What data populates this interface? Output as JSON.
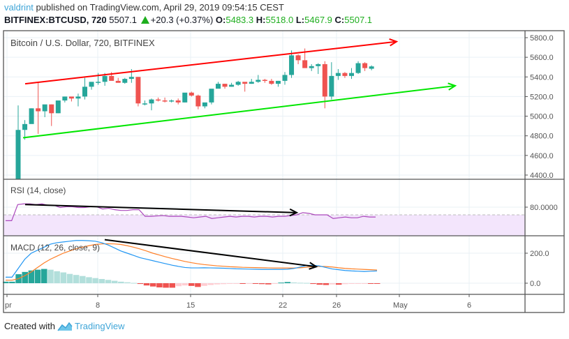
{
  "header": {
    "author": "valdrint",
    "published_text": "published on TradingView.com, April 29, 2019 09:54:15 CEST",
    "symbol": "BITFINEX:BTCUSD, 720",
    "last_price": "5507.1",
    "change": "+20.3 (+0.37%)",
    "o_label": "O:",
    "o_value": "5483.3",
    "h_label": "H:",
    "h_value": "5518.0",
    "l_label": "L:",
    "l_value": "5467.9",
    "c_label": "C:",
    "c_value": "5507.1"
  },
  "footer": {
    "created_with": "Created with",
    "brand": "TradingView"
  },
  "colors": {
    "up": "#26a69a",
    "down": "#ef5350",
    "resistance": "#ff0000",
    "support": "#00e600",
    "rsi": "#ab47bc",
    "rsi_fill": "#f3e5fc",
    "macd": "#2196f3",
    "signal": "#ff7f27",
    "hist_up_strong": "#26a69a",
    "hist_up_weak": "#b2dfdb",
    "hist_down_strong": "#ef5350",
    "hist_down_weak": "#ffcdd2",
    "grid": "#e9f0f6",
    "axis": "#555555"
  },
  "chart_data": [
    {
      "type": "candlestick",
      "title": "Bitcoin / U.S. Dollar, 720, BITFINEX",
      "ylim": [
        4400,
        5800
      ],
      "yticks": [
        "5800.0",
        "5600.0",
        "5400.0",
        "5200.0",
        "5000.0",
        "4800.0",
        "4600.0",
        "4400.0"
      ],
      "xticks": [
        "pr",
        "8",
        "15",
        "22",
        "26",
        "May",
        "6"
      ],
      "ohlc": [
        [
          4300,
          5110,
          4290,
          4860
        ],
        [
          4860,
          4960,
          4760,
          4920
        ],
        [
          4920,
          5080,
          4950,
          5080
        ],
        [
          5080,
          5340,
          4820,
          5050
        ],
        [
          5050,
          5110,
          4990,
          5120
        ],
        [
          5120,
          5120,
          4900,
          5030
        ],
        [
          5030,
          5150,
          5030,
          5160
        ],
        [
          5160,
          5200,
          5140,
          5200
        ],
        [
          5200,
          5190,
          5150,
          5180
        ],
        [
          5180,
          5230,
          5100,
          5200
        ],
        [
          5200,
          5390,
          5170,
          5300
        ],
        [
          5300,
          5320,
          5270,
          5350
        ],
        [
          5350,
          5440,
          5320,
          5350
        ],
        [
          5350,
          5440,
          5310,
          5410
        ],
        [
          5410,
          5450,
          5380,
          5360
        ],
        [
          5360,
          5390,
          5350,
          5340
        ],
        [
          5340,
          5390,
          5330,
          5380
        ],
        [
          5380,
          5480,
          5340,
          5400
        ],
        [
          5400,
          5400,
          5100,
          5130
        ],
        [
          5130,
          5160,
          5110,
          5130
        ],
        [
          5130,
          5180,
          5060,
          5170
        ],
        [
          5170,
          5190,
          5150,
          5160
        ],
        [
          5160,
          5190,
          5140,
          5150
        ],
        [
          5150,
          5170,
          5140,
          5160
        ],
        [
          5160,
          5180,
          5120,
          5140
        ],
        [
          5140,
          5230,
          5140,
          5240
        ],
        [
          5240,
          5250,
          5200,
          5210
        ],
        [
          5210,
          5220,
          5070,
          5100
        ],
        [
          5100,
          5120,
          5080,
          5140
        ],
        [
          5140,
          5260,
          5120,
          5280
        ],
        [
          5280,
          5350,
          5290,
          5330
        ],
        [
          5330,
          5330,
          5280,
          5300
        ],
        [
          5300,
          5340,
          5300,
          5320
        ],
        [
          5320,
          5360,
          5310,
          5350
        ],
        [
          5350,
          5340,
          5250,
          5330
        ],
        [
          5330,
          5380,
          5330,
          5350
        ],
        [
          5350,
          5420,
          5340,
          5370
        ],
        [
          5370,
          5380,
          5340,
          5360
        ],
        [
          5360,
          5380,
          5320,
          5330
        ],
        [
          5330,
          5360,
          5300,
          5360
        ],
        [
          5360,
          5450,
          5320,
          5420
        ],
        [
          5420,
          5670,
          5390,
          5620
        ],
        [
          5620,
          5630,
          5530,
          5570
        ],
        [
          5570,
          5690,
          5540,
          5490
        ],
        [
          5490,
          5530,
          5460,
          5510
        ],
        [
          5510,
          5540,
          5430,
          5530
        ],
        [
          5530,
          5560,
          5080,
          5200
        ],
        [
          5200,
          5550,
          5170,
          5410
        ],
        [
          5410,
          5480,
          5370,
          5440
        ],
        [
          5440,
          5450,
          5390,
          5410
        ],
        [
          5410,
          5490,
          5380,
          5440
        ],
        [
          5440,
          5560,
          5430,
          5540
        ],
        [
          5540,
          5550,
          5460,
          5490
        ],
        [
          5483.3,
          5518.0,
          5467.9,
          5507.1
        ]
      ],
      "annotations": [
        {
          "type": "trendline",
          "color": "resistance",
          "from": [
            36,
            5330
          ],
          "to": [
            568,
            5760
          ],
          "arrow": true
        },
        {
          "type": "trendline",
          "color": "support",
          "from": [
            33,
            4780
          ],
          "to": [
            652,
            5310
          ],
          "arrow": true
        }
      ]
    },
    {
      "type": "line",
      "title": "RSI (14, close)",
      "yticks": [
        "80.0000"
      ],
      "upper_band": 70,
      "values": [
        62,
        62,
        84,
        85,
        85,
        84,
        85,
        83,
        83,
        80,
        81,
        81,
        80,
        80,
        81,
        81,
        78,
        79,
        77,
        76,
        76,
        77,
        77,
        68,
        68,
        68.5,
        69,
        68,
        68,
        68,
        67,
        66,
        67,
        68,
        65,
        66,
        67,
        68,
        67,
        68,
        68,
        67,
        68,
        68,
        67,
        68,
        68,
        69,
        70,
        73,
        72,
        70,
        70,
        70,
        65,
        66,
        67,
        66,
        66,
        68,
        67,
        67
      ],
      "annotations": [
        {
          "type": "trendline",
          "color": "#000000",
          "from": [
            36,
            84
          ],
          "to": [
            425,
            73
          ],
          "arrow": true
        }
      ]
    },
    {
      "type": "line+histogram",
      "title": "MACD (12, 26, close, 9)",
      "yticks": [
        "200.0",
        "0.0"
      ],
      "macd": [
        40,
        40,
        100,
        160,
        200,
        220,
        240,
        260,
        270,
        275,
        280,
        285,
        285,
        283,
        280,
        270,
        255,
        235,
        215,
        200,
        185,
        170,
        160,
        150,
        140,
        130,
        120,
        112,
        105,
        102,
        102,
        103,
        102,
        101,
        100,
        98,
        96,
        95,
        94,
        93,
        92,
        92,
        92,
        92,
        93,
        98,
        108,
        118,
        120,
        115,
        105,
        95,
        90,
        85,
        82,
        80,
        78,
        80,
        82
      ],
      "signal": [
        20,
        20,
        30,
        50,
        75,
        105,
        135,
        160,
        180,
        200,
        215,
        230,
        240,
        250,
        258,
        262,
        263,
        262,
        258,
        250,
        240,
        228,
        215,
        200,
        188,
        176,
        165,
        155,
        145,
        137,
        130,
        124,
        120,
        116,
        113,
        110,
        108,
        106,
        105,
        104,
        103,
        102,
        101,
        101,
        101,
        101,
        103,
        106,
        110,
        112,
        111,
        108,
        103,
        99,
        96,
        94,
        92,
        90,
        88
      ],
      "histogram": [
        10,
        10,
        60,
        75,
        85,
        90,
        95,
        90,
        80,
        72,
        62,
        55,
        48,
        40,
        34,
        28,
        22,
        16,
        10,
        6,
        2,
        -5,
        -15,
        -22,
        -28,
        -30,
        -30,
        -20,
        -15,
        -18,
        -25,
        -18,
        -12,
        -8,
        -6,
        -4,
        -3,
        -3,
        -2,
        -2,
        -6,
        -8,
        -3,
        4,
        8,
        5,
        3,
        2,
        -5,
        -10,
        -12,
        -8,
        -10,
        -6,
        -4,
        -2,
        -1,
        -1,
        -1
      ],
      "annotations": [
        {
          "type": "trendline",
          "color": "#000000",
          "from": [
            150,
            290
          ],
          "to": [
            453,
            110
          ],
          "arrow": true
        }
      ]
    }
  ]
}
